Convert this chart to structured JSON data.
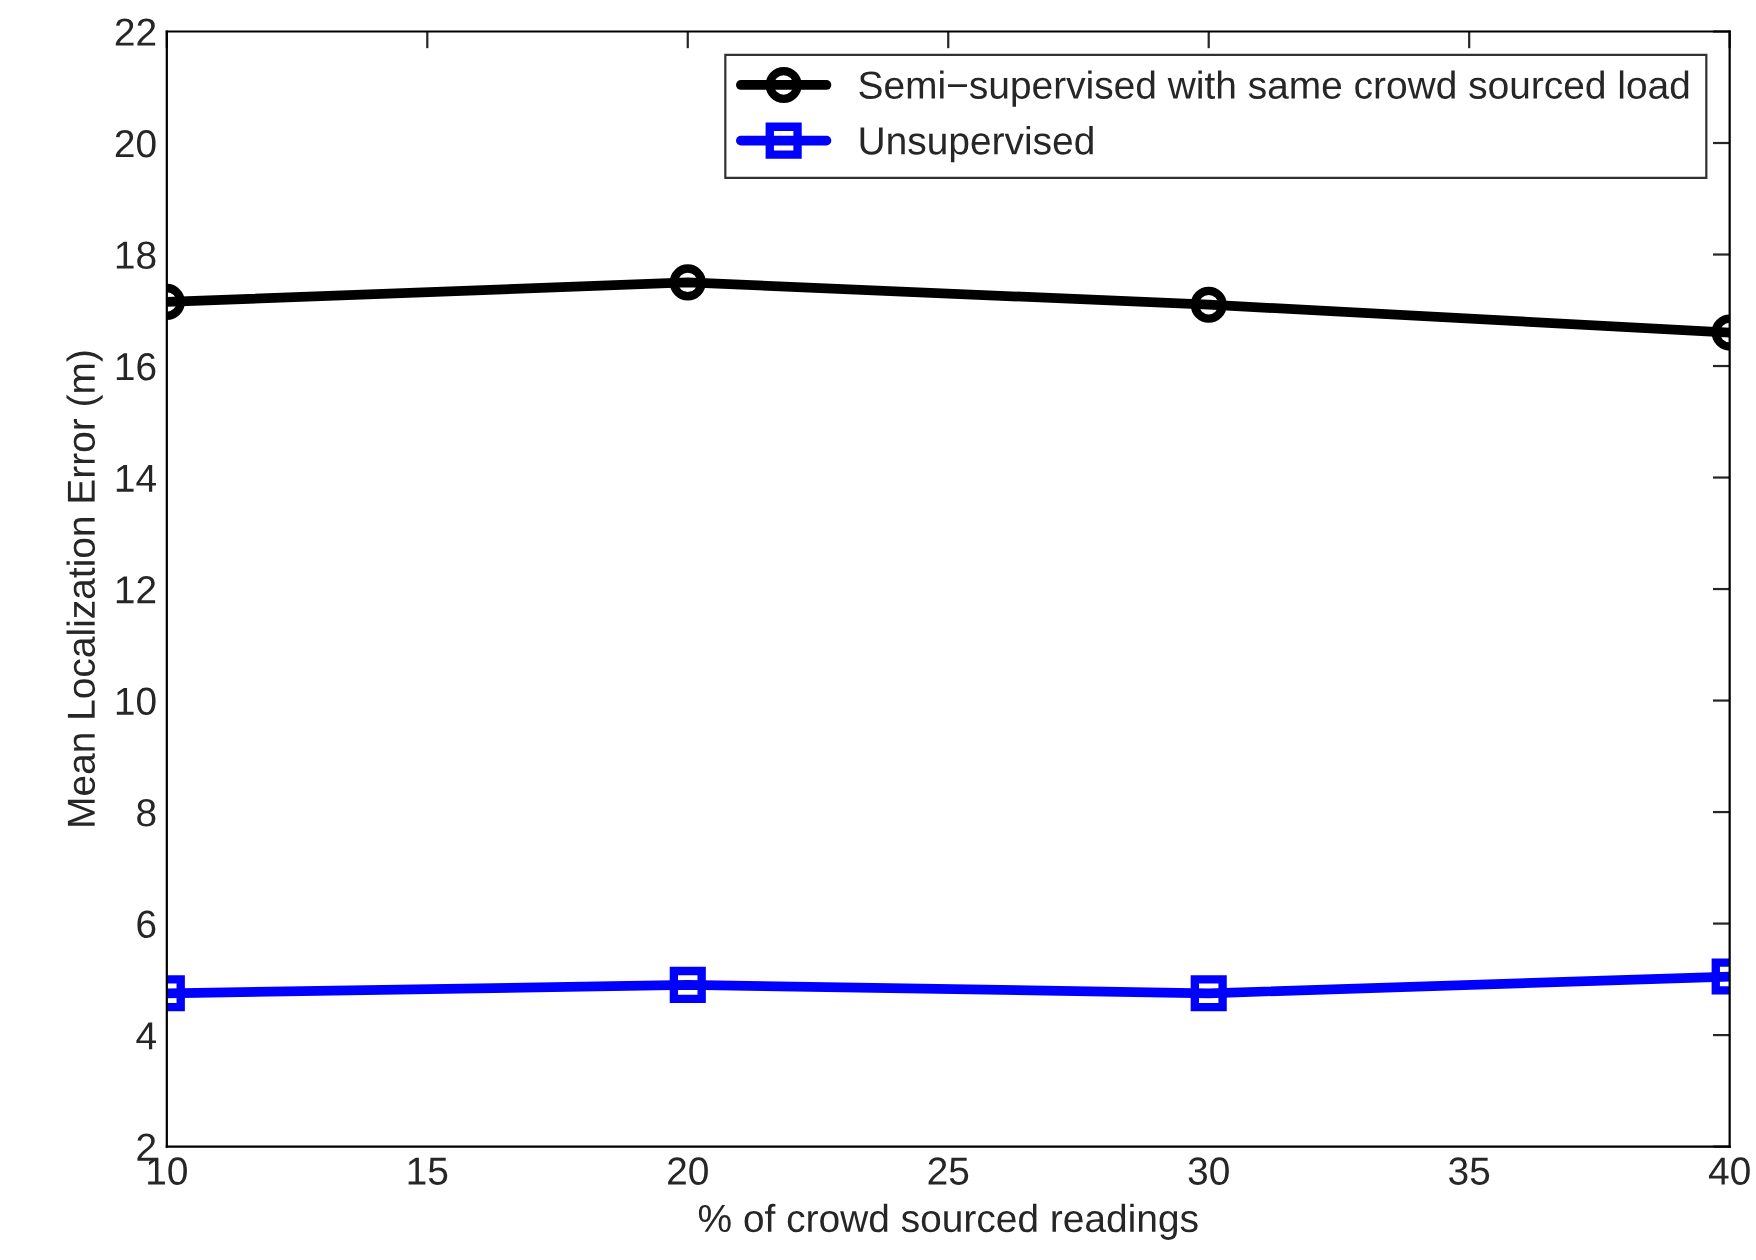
{
  "chart_data": {
    "type": "line",
    "xlabel": "% of crowd sourced readings",
    "ylabel": "Mean Localization Error (m)",
    "x": [
      10,
      20,
      30,
      40
    ],
    "series": [
      {
        "name": "Semi−supervised with same crowd sourced load",
        "color": "#000000",
        "marker": "circle",
        "values": [
          17.15,
          17.5,
          17.1,
          16.6
        ]
      },
      {
        "name": "Unsupervised",
        "color": "#0000ff",
        "marker": "square",
        "values": [
          4.75,
          4.9,
          4.75,
          5.05
        ]
      }
    ],
    "xlim": [
      10,
      40
    ],
    "xticks": [
      10,
      15,
      20,
      25,
      30,
      35,
      40
    ],
    "ylim": [
      2,
      22
    ],
    "yticks": [
      2,
      4,
      6,
      8,
      10,
      12,
      14,
      16,
      18,
      20,
      22
    ],
    "grid": false,
    "legend": "top right",
    "line_style": "solid"
  }
}
